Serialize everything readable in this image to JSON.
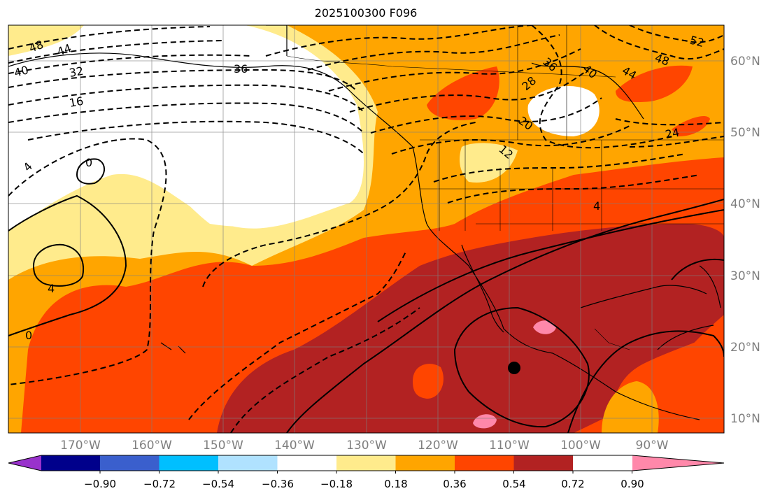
{
  "title": "2025100300 F096",
  "map": {
    "lat_labels": [
      "60°N",
      "50°N",
      "40°N",
      "30°N",
      "20°N",
      "10°N"
    ],
    "lon_labels": [
      "170°W",
      "160°W",
      "150°W",
      "140°W",
      "130°W",
      "120°W",
      "110°W",
      "100°W",
      "90°W"
    ],
    "contour_labels": [
      "48",
      "44",
      "40",
      "32",
      "16",
      "36",
      "4",
      "0",
      "4",
      "0",
      "36",
      "40",
      "28",
      "20",
      "12",
      "48",
      "44",
      "52",
      "24",
      "4"
    ],
    "colors": {
      "pale_yellow": "#ffeb8c",
      "orange": "#ffa500",
      "red_orange": "#ff4500",
      "dark_red": "#b22222",
      "pink": "#ff88aa"
    }
  },
  "colorbar": {
    "ticks": [
      "−0.90",
      "−0.72",
      "−0.54",
      "−0.36",
      "−0.18",
      "0.18",
      "0.36",
      "0.54",
      "0.72",
      "0.90"
    ],
    "colors": [
      "#9932cc",
      "#00008b",
      "#3a5fcd",
      "#00bfff",
      "#b0e2ff",
      "#ffffff",
      "#ffeb8c",
      "#ffa500",
      "#ff4500",
      "#b22222",
      "#ff88aa"
    ]
  }
}
